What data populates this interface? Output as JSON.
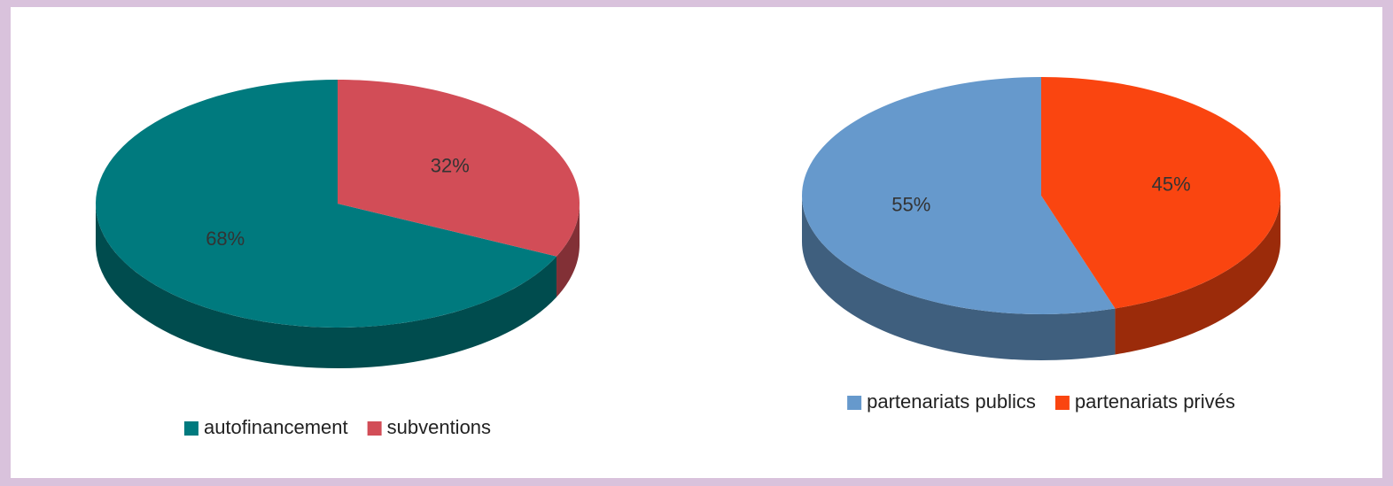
{
  "chart_data": [
    {
      "type": "pie",
      "categories": [
        "autofinancement",
        "subventions"
      ],
      "values": [
        68,
        32
      ],
      "value_labels": [
        "68%",
        "32%"
      ],
      "colors": [
        "#007a7e",
        "#d24d57"
      ]
    },
    {
      "type": "pie",
      "categories": [
        "partenariats publics",
        "partenariats privés"
      ],
      "values": [
        55,
        45
      ],
      "value_labels": [
        "55%",
        "45%"
      ],
      "colors": [
        "#6699cc",
        "#fa4510"
      ]
    }
  ]
}
